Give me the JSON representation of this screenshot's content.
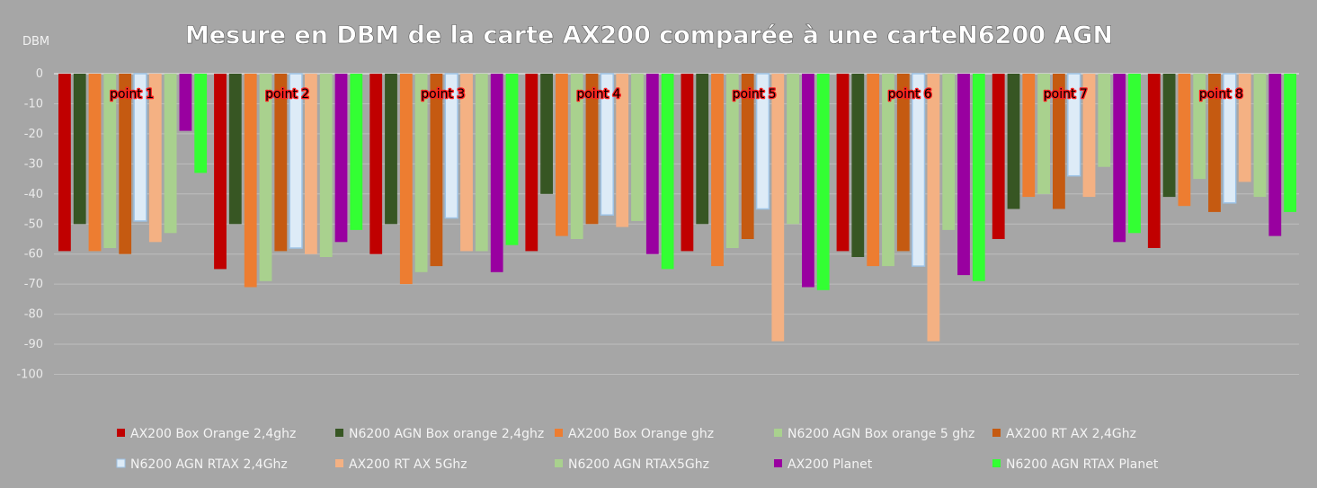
{
  "chart_data": {
    "type": "bar",
    "title": "Mesure en DBM de la carte AX200 comparée à une carteN6200 AGN",
    "ylabel": "DBM",
    "ylim": [
      -100,
      0
    ],
    "yticks": [
      "0",
      "-10",
      "-20",
      "-30",
      "-40",
      "-50",
      "-60",
      "-70",
      "-80",
      "-90",
      "-100"
    ],
    "grid": true,
    "legend_position": "bottom",
    "categories": [
      "point 1",
      "point 2",
      "point 3",
      "point 4",
      "point 5",
      "point 6",
      "point 7",
      "point 8"
    ],
    "series": [
      {
        "name": "AX200 Box Orange 2,4ghz",
        "color": "#c00000",
        "values": [
          -59,
          -65,
          -60,
          -59,
          -59,
          -59,
          -55,
          -58
        ]
      },
      {
        "name": "N6200 AGN Box orange 2,4ghz",
        "color": "#375623",
        "values": [
          -50,
          -50,
          -50,
          -40,
          -50,
          -61,
          -45,
          -41
        ]
      },
      {
        "name": "AX200 Box Orange ghz",
        "color": "#ed7d31",
        "values": [
          -59,
          -71,
          -70,
          -54,
          -64,
          -64,
          -41,
          -44
        ]
      },
      {
        "name": "N6200 AGN Box orange 5 ghz",
        "color": "#a9d18e",
        "values": [
          -58,
          -69,
          -66,
          -55,
          -58,
          -64,
          -40,
          -35
        ]
      },
      {
        "name": "AX200 RT AX 2,4Ghz",
        "color": "#c55a11",
        "values": [
          -60,
          -59,
          -64,
          -50,
          -55,
          -59,
          -45,
          -46
        ]
      },
      {
        "name": "N6200 AGN  RTAX 2,4Ghz",
        "color": "#ddebf7",
        "values": [
          -49,
          -58,
          -48,
          -47,
          -45,
          -64,
          -34,
          -43
        ]
      },
      {
        "name": "AX200 RT AX 5Ghz",
        "color": "#f4b183",
        "values": [
          -56,
          -60,
          -59,
          -51,
          -89,
          -89,
          -41,
          -36
        ]
      },
      {
        "name": "N6200 AGN  RTAX5Ghz",
        "color": "#a9d18e",
        "values": [
          -53,
          -61,
          -59,
          -49,
          -50,
          -52,
          -31,
          -41
        ]
      },
      {
        "name": "AX200 Planet",
        "color": "#9900a0",
        "values": [
          -19,
          -56,
          -66,
          -60,
          -71,
          -67,
          -56,
          -54
        ]
      },
      {
        "name": "N6200 AGN  RTAX Planet",
        "color": "#33ff33",
        "values": [
          -33,
          -52,
          -57,
          -65,
          -72,
          -69,
          -53,
          -46
        ]
      }
    ]
  }
}
